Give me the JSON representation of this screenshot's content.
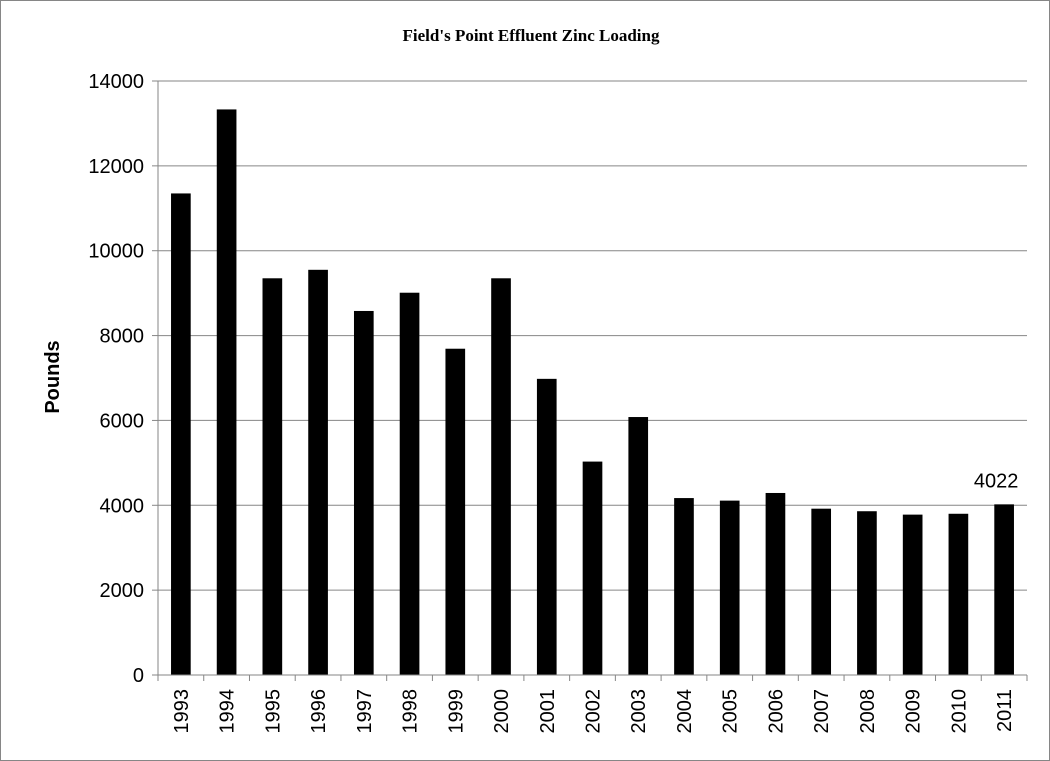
{
  "chart_data": {
    "type": "bar",
    "title": "Field's Point Effluent Zinc Loading",
    "ylabel": "Pounds",
    "xlabel": "",
    "categories": [
      "1993",
      "1994",
      "1995",
      "1996",
      "1997",
      "1998",
      "1999",
      "2000",
      "2001",
      "2002",
      "2003",
      "2004",
      "2005",
      "2006",
      "2007",
      "2008",
      "2009",
      "2010",
      "2011"
    ],
    "values": [
      11350,
      13330,
      9350,
      9550,
      8580,
      9010,
      7690,
      9350,
      6980,
      5030,
      6080,
      4170,
      4110,
      4290,
      3920,
      3860,
      3780,
      3800,
      4022
    ],
    "ylim": [
      0,
      14000
    ],
    "yticks": [
      "0",
      "2000",
      "4000",
      "6000",
      "8000",
      "10000",
      "12000",
      "14000"
    ],
    "grid": true,
    "legend": "none",
    "bar_color": "#000000",
    "grid_color": "#868686",
    "data_labels": [
      {
        "category": "2011",
        "text": "4022"
      }
    ]
  }
}
